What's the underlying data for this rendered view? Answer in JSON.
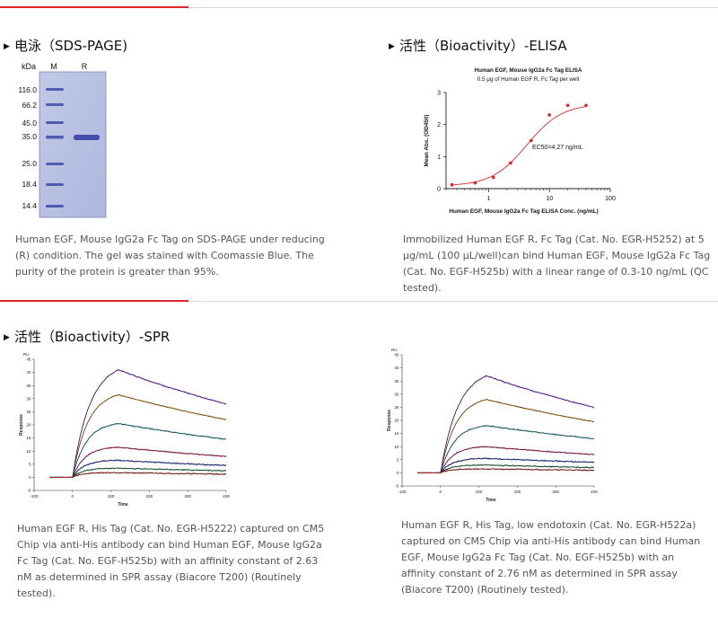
{
  "sections": {
    "sds": {
      "title": "电泳（SDS-PAGE)",
      "caption": "Human EGF, Mouse IgG2a Fc Tag on SDS-PAGE under reducing (R) condition. The gel was stained with Coomassie Blue. The purity of the protein is greater than 95%.",
      "gel": {
        "kda_label": "kDa",
        "lane_labels": [
          "M",
          "R"
        ],
        "markers": [
          "116.0",
          "66.2",
          "45.0",
          "35.0",
          "25.0",
          "18.4",
          "14.4"
        ]
      }
    },
    "elisa": {
      "title": "活性（Bioactivity）-ELISA",
      "caption": "Immobilized Human EGF R, Fc Tag (Cat. No. EGR-H5252) at 5 μg/mL (100 μL/well)can bind Human EGF, Mouse IgG2a Fc Tag (Cat. No. EGF-H525b) with a linear range of 0.3-10 ng/mL (QC tested)."
    },
    "spr": {
      "title": "活性（Bioactivity）-SPR",
      "caption_left": "Human EGF R, His Tag (Cat. No. EGR-H5222) captured on CM5 Chip via anti-His antibody can bind Human EGF, Mouse IgG2a Fc Tag (Cat. No. EGF-H525b) with an affinity constant of 2.63 nM as determined in SPR assay (Biacore T200) (Routinely tested).",
      "caption_right": "Human EGF R, His Tag, low endotoxin (Cat. No. EGR-H522a) captured on CM5 Chip via anti-His antibody can bind Human EGF, Mouse IgG2a Fc Tag (Cat. No. EGF-H525b) with an affinity constant of 2.76 nM as determined in SPR assay (Biacore T200) (Routinely tested)."
    }
  },
  "chart_data": [
    {
      "type": "scatter",
      "title": "Human EGF, Mouse IgG2a Fc Tag ELISA",
      "subtitle": "0.5 μg of Human EGF R, Fc Tag per well",
      "xlabel": "Human EGF, Mouse IgG2a Fc Tag ELISA Conc. (ng/mL)",
      "ylabel": "Mean Abs. (OD450)",
      "xscale": "log",
      "xlim": [
        0.2,
        100
      ],
      "ylim": [
        0,
        3
      ],
      "xticks": [
        1,
        10,
        100
      ],
      "xtick_labels": [
        "1",
        "10",
        "100"
      ],
      "yticks": [
        0,
        1,
        2,
        3
      ],
      "ytick_labels": [
        "0",
        "1",
        "2",
        "3"
      ],
      "annotation": "EC50=4.27 ng/mL",
      "points": [
        {
          "x": 0.25,
          "y": 0.12
        },
        {
          "x": 0.6,
          "y": 0.18
        },
        {
          "x": 1.2,
          "y": 0.35
        },
        {
          "x": 2.3,
          "y": 0.8
        },
        {
          "x": 5,
          "y": 1.5
        },
        {
          "x": 10,
          "y": 2.3
        },
        {
          "x": 20,
          "y": 2.6
        },
        {
          "x": 40,
          "y": 2.6
        }
      ],
      "fit": {
        "bottom": 0.08,
        "top": 2.65,
        "ec50": 4.27,
        "hill": 1.5
      },
      "colors": {
        "fit": "#e23a3a",
        "points": "#e02020",
        "axis": "#222222"
      }
    },
    {
      "type": "line",
      "name": "SPR sensorgram (EGR-H5222)",
      "xlabel": "Time",
      "ylabel": "Response",
      "unit_label": "RU",
      "xlim": [
        -100,
        400
      ],
      "ylim": [
        -5,
        45
      ],
      "xticks": [
        -100,
        0,
        100,
        200,
        300,
        400
      ],
      "xtick_labels": [
        "-100",
        "0",
        "100",
        "200",
        "300",
        "400"
      ],
      "yticks": [
        -5,
        0,
        5,
        10,
        15,
        20,
        25,
        30,
        35,
        40,
        45
      ],
      "ytick_labels": [
        "-5",
        "0",
        "5",
        "10",
        "15",
        "20",
        "25",
        "30",
        "35",
        "40",
        "45"
      ],
      "assoc_end": 120,
      "series": [
        {
          "name": "c1",
          "plateau": 41,
          "dissoc_end": 28,
          "color": "#8a2be2"
        },
        {
          "name": "c2",
          "plateau": 31.5,
          "dissoc_end": 22,
          "color": "#d88a20"
        },
        {
          "name": "c3",
          "plateau": 20.5,
          "dissoc_end": 14.5,
          "color": "#1f8f9a"
        },
        {
          "name": "c4",
          "plateau": 11.5,
          "dissoc_end": 8,
          "color": "#cc1f6e"
        },
        {
          "name": "c5",
          "plateau": 6.5,
          "dissoc_end": 4.5,
          "color": "#1c2fae"
        },
        {
          "name": "c6",
          "plateau": 3.5,
          "dissoc_end": 2.5,
          "color": "#0f7a3a"
        },
        {
          "name": "c7",
          "plateau": 1.8,
          "dissoc_end": 1.2,
          "color": "#c21f1f"
        }
      ],
      "fit_color": "#111111"
    },
    {
      "type": "line",
      "name": "SPR sensorgram (EGR-H522a)",
      "xlabel": "Time",
      "ylabel": "Response",
      "unit_label": "RU",
      "xlim": [
        -100,
        400
      ],
      "ylim": [
        -5,
        45
      ],
      "xticks": [
        -100,
        0,
        100,
        200,
        300,
        400
      ],
      "xtick_labels": [
        "-100",
        "0",
        "100",
        "200",
        "300",
        "400"
      ],
      "yticks": [
        -5,
        0,
        5,
        10,
        15,
        20,
        25,
        30,
        35,
        40,
        45
      ],
      "ytick_labels": [
        "-5",
        "0",
        "5",
        "10",
        "15",
        "20",
        "25",
        "30",
        "35",
        "40",
        "45"
      ],
      "assoc_end": 120,
      "series": [
        {
          "name": "c1",
          "plateau": 37,
          "dissoc_end": 25,
          "color": "#8a2be2"
        },
        {
          "name": "c2",
          "plateau": 28,
          "dissoc_end": 19.5,
          "color": "#d88a20"
        },
        {
          "name": "c3",
          "plateau": 18,
          "dissoc_end": 13,
          "color": "#1f8f9a"
        },
        {
          "name": "c4",
          "plateau": 10,
          "dissoc_end": 7,
          "color": "#cc1f6e"
        },
        {
          "name": "c5",
          "plateau": 5.5,
          "dissoc_end": 4,
          "color": "#1c2fae"
        },
        {
          "name": "c6",
          "plateau": 3,
          "dissoc_end": 2,
          "color": "#0f7a3a"
        },
        {
          "name": "c7",
          "plateau": 1.5,
          "dissoc_end": 1,
          "color": "#c21f1f"
        }
      ],
      "fit_color": "#111111"
    }
  ]
}
